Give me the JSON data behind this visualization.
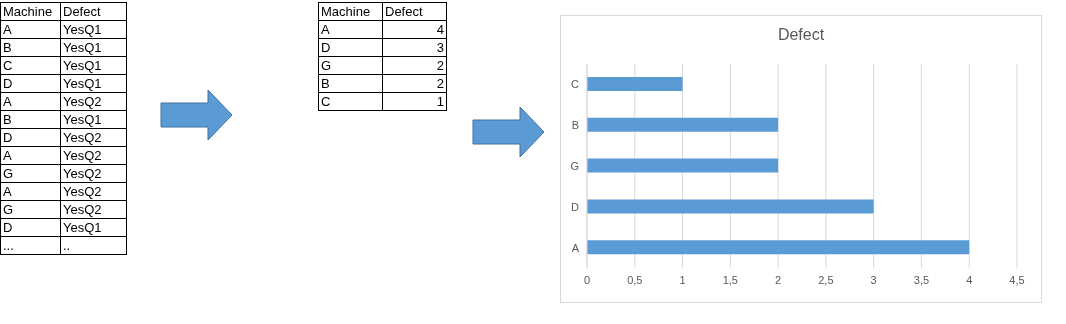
{
  "chart_data": [
    {
      "type": "other",
      "xlabel": "Machine",
      "ylabel": "Defect",
      "categories": [
        "A",
        "B",
        "C",
        "D",
        "A",
        "B",
        "D",
        "A",
        "G",
        "A",
        "G",
        "D",
        "..."
      ],
      "annotations": [
        "YesQ1",
        "YesQ1",
        "YesQ1",
        "YesQ1",
        "YesQ2",
        "YesQ1",
        "YesQ2",
        "YesQ2",
        "YesQ2",
        "YesQ2",
        "YesQ2",
        "YesQ1",
        ".."
      ]
    },
    {
      "type": "other",
      "xlabel": "Machine",
      "ylabel": "Defect",
      "categories": [
        "A",
        "D",
        "G",
        "B",
        "C"
      ],
      "values": [
        4,
        3,
        2,
        2,
        1
      ],
      "data_labels": true
    },
    {
      "type": "bar",
      "orientation": "horizontal",
      "title": "Defect",
      "categories": [
        "C",
        "B",
        "G",
        "D",
        "A"
      ],
      "values": [
        1,
        2,
        2,
        3,
        4
      ],
      "color": "#5b9bd5",
      "xlim": [
        0,
        4.5
      ],
      "xticks": [
        0,
        {
          "value": 0.5,
          "label": "0,5"
        },
        1,
        {
          "value": 1.5,
          "label": "1,5"
        },
        2,
        {
          "value": 2.5,
          "label": "2,5"
        },
        3,
        {
          "value": 3.5,
          "label": "3,5"
        },
        4,
        {
          "value": 4.5,
          "label": "4,5"
        }
      ],
      "grid": "x"
    }
  ]
}
